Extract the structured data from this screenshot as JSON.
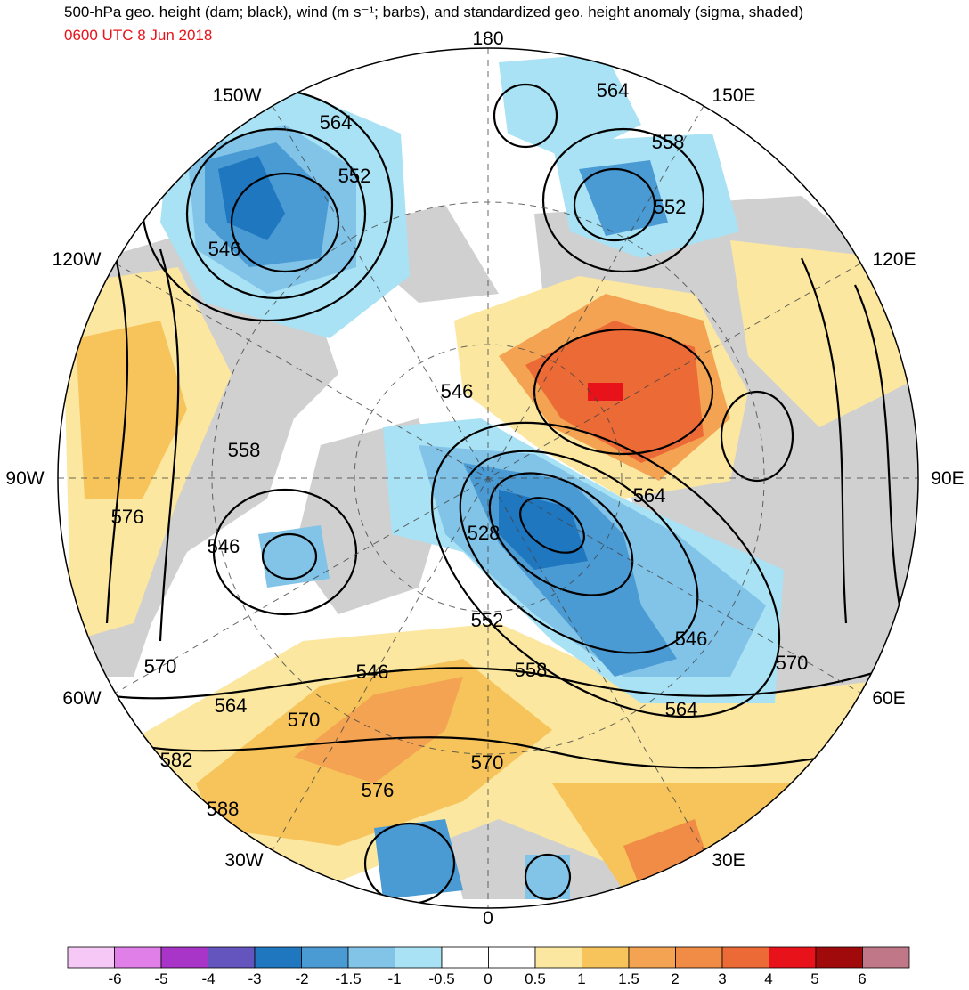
{
  "header": {
    "title": "500-hPa geo. height (dam; black), wind (m s⁻¹; barbs), and standardized geo. height anomaly (sigma, shaded)",
    "valid_time": "0600 UTC 8 Jun 2018"
  },
  "map": {
    "projection": "north-polar-stereographic",
    "longitude_labels": {
      "top": "180",
      "bottom": "0",
      "left": "90W",
      "right": "90E",
      "w150": "150W",
      "e150": "150E",
      "w120": "120W",
      "e120": "120E",
      "w60": "60W",
      "e60": "60E",
      "w30": "30W",
      "e30": "30E"
    },
    "contour_labels": [
      "564",
      "564",
      "558",
      "552",
      "552",
      "546",
      "546",
      "558",
      "546",
      "576",
      "528",
      "564",
      "546",
      "552",
      "558",
      "546",
      "570",
      "570",
      "564",
      "570",
      "564",
      "564",
      "582",
      "576",
      "570",
      "588"
    ],
    "colors": {
      "neg6": "#f5c8f5",
      "neg5": "#e07fe8",
      "neg4": "#a835c8",
      "neg3": "#6455be",
      "neg2_5": "#1f77c0",
      "neg2": "#4a9ad4",
      "neg1_5": "#82c3e8",
      "neg1": "#a8e2f4",
      "neutral": "#ffffff",
      "land": "#d0d0d0",
      "pos0_5": "#fbe7a0",
      "pos1": "#f6c45a",
      "pos1_5": "#f3a352",
      "pos2": "#f08c45",
      "pos3": "#ec6a35",
      "pos4": "#e8121a",
      "pos5": "#a00a0a",
      "pos6": "#c07888"
    }
  },
  "colorbar": {
    "tick_labels": [
      "-6",
      "-5",
      "-4",
      "-3",
      "-2",
      "-1.5",
      "-1",
      "-0.5",
      "0",
      "0.5",
      "1",
      "1.5",
      "2",
      "3",
      "4",
      "5",
      "6"
    ],
    "colors": [
      "#f5c8f5",
      "#e07fe8",
      "#a835c8",
      "#6455be",
      "#1f77c0",
      "#4a9ad4",
      "#82c3e8",
      "#a8e2f4",
      "#ffffff",
      "#ffffff",
      "#fbe7a0",
      "#f6c45a",
      "#f3a352",
      "#f08c45",
      "#ec6a35",
      "#e8121a",
      "#a00a0a",
      "#c07888"
    ]
  }
}
